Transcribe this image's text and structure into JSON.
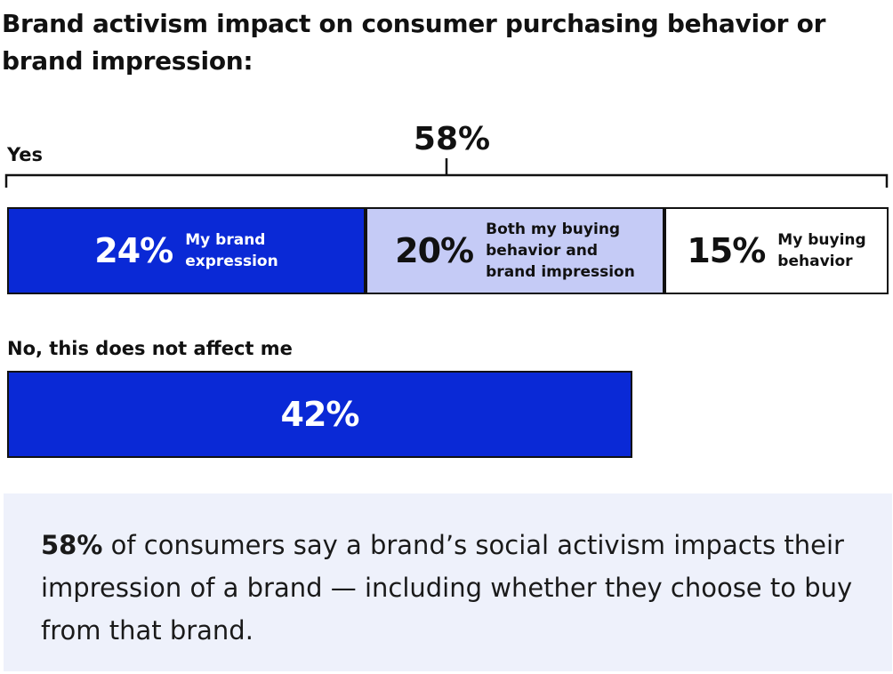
{
  "title": "Brand activism impact on consumer purchasing behavior or brand impression:",
  "chart_data": {
    "type": "bar",
    "orientation": "horizontal",
    "stacked": true,
    "groups": [
      {
        "label": "Yes",
        "total": 58,
        "total_label": "58%",
        "segments": [
          {
            "value": 24,
            "value_label": "24%",
            "label": "My brand\nexpression",
            "color": "#0a29d6",
            "text_color": "#ffffff"
          },
          {
            "value": 20,
            "value_label": "20%",
            "label": "Both my buying\nbehavior and\nbrand impression",
            "color": "#c5cbf6",
            "text_color": "#111111"
          },
          {
            "value": 15,
            "value_label": "15%",
            "label": "My buying\nbehavior",
            "color": "#ffffff",
            "text_color": "#111111"
          }
        ]
      },
      {
        "label": "No, this does not affect me",
        "total": 42,
        "segments": [
          {
            "value": 42,
            "value_label": "42%",
            "label": "",
            "color": "#0a29d6",
            "text_color": "#ffffff"
          }
        ]
      }
    ]
  },
  "callout": {
    "highlight": "58%",
    "text": " of consumers say a brand’s social activism impacts their impression of a brand — including whether they choose to buy from that brand."
  }
}
